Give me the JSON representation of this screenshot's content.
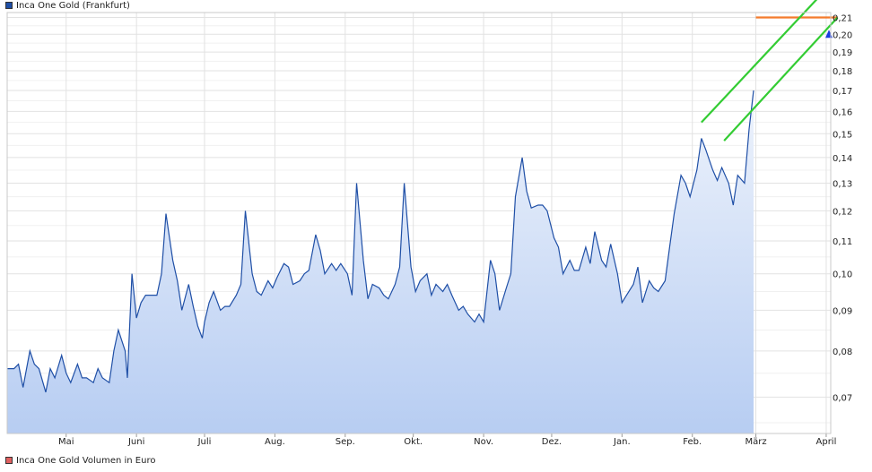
{
  "legend": {
    "price_series": "Inca One Gold (Frankfurt)",
    "volume_series": "Inca One Gold Volumen in Euro"
  },
  "colors": {
    "price_line": "#1f4fa6",
    "price_fill_top": "#eef3fc",
    "price_fill_bottom": "#b7cdf2",
    "volume_swatch": "#e06060",
    "trend_orange": "#f47b2c",
    "trend_green": "#33cc33",
    "last_marker": "#1a3de0",
    "grid": "#e2e2e2"
  },
  "chart_data": {
    "type": "area",
    "y_scale": "log",
    "ylim": [
      0.063,
      0.213
    ],
    "x_range": [
      "2024-04-05",
      "2025-04-03"
    ],
    "month_ticks": [
      {
        "label": "Mai",
        "date": "2024-05-01"
      },
      {
        "label": "Juni",
        "date": "2024-06-01"
      },
      {
        "label": "Juli",
        "date": "2024-07-01"
      },
      {
        "label": "Aug.",
        "date": "2024-08-01"
      },
      {
        "label": "Sep.",
        "date": "2024-09-01"
      },
      {
        "label": "Okt.",
        "date": "2024-10-01"
      },
      {
        "label": "Nov.",
        "date": "2024-11-01"
      },
      {
        "label": "Dez.",
        "date": "2024-12-01"
      },
      {
        "label": "Jan.",
        "date": "2025-01-01"
      },
      {
        "label": "Feb.",
        "date": "2025-02-01"
      },
      {
        "label": "März",
        "date": "2025-03-01"
      },
      {
        "label": "April",
        "date": "2025-04-01"
      }
    ],
    "y_ticks": [
      {
        "value": 0.07,
        "label": "0,07"
      },
      {
        "value": 0.08,
        "label": "0,08"
      },
      {
        "value": 0.09,
        "label": "0,09"
      },
      {
        "value": 0.1,
        "label": "0,10"
      },
      {
        "value": 0.11,
        "label": "0,11"
      },
      {
        "value": 0.12,
        "label": "0,12"
      },
      {
        "value": 0.13,
        "label": "0,13"
      },
      {
        "value": 0.14,
        "label": "0,14"
      },
      {
        "value": 0.15,
        "label": "0,15"
      },
      {
        "value": 0.16,
        "label": "0,16"
      },
      {
        "value": 0.17,
        "label": "0,17"
      },
      {
        "value": 0.18,
        "label": "0,18"
      },
      {
        "value": 0.19,
        "label": "0,19"
      },
      {
        "value": 0.2,
        "label": "0,20"
      },
      {
        "value": 0.21,
        "label": "0,21"
      }
    ],
    "series": [
      {
        "name": "Inca One Gold (Frankfurt)",
        "points": [
          [
            "2024-04-05",
            0.076
          ],
          [
            "2024-04-08",
            0.076
          ],
          [
            "2024-04-10",
            0.077
          ],
          [
            "2024-04-12",
            0.072
          ],
          [
            "2024-04-15",
            0.08
          ],
          [
            "2024-04-17",
            0.077
          ],
          [
            "2024-04-19",
            0.076
          ],
          [
            "2024-04-22",
            0.071
          ],
          [
            "2024-04-24",
            0.076
          ],
          [
            "2024-04-26",
            0.074
          ],
          [
            "2024-04-29",
            0.079
          ],
          [
            "2024-05-01",
            0.075
          ],
          [
            "2024-05-03",
            0.073
          ],
          [
            "2024-05-06",
            0.077
          ],
          [
            "2024-05-08",
            0.074
          ],
          [
            "2024-05-10",
            0.074
          ],
          [
            "2024-05-13",
            0.073
          ],
          [
            "2024-05-15",
            0.076
          ],
          [
            "2024-05-17",
            0.074
          ],
          [
            "2024-05-20",
            0.073
          ],
          [
            "2024-05-22",
            0.08
          ],
          [
            "2024-05-24",
            0.085
          ],
          [
            "2024-05-27",
            0.08
          ],
          [
            "2024-05-28",
            0.074
          ],
          [
            "2024-05-30",
            0.1
          ],
          [
            "2024-06-01",
            0.088
          ],
          [
            "2024-06-03",
            0.092
          ],
          [
            "2024-06-05",
            0.094
          ],
          [
            "2024-06-07",
            0.094
          ],
          [
            "2024-06-10",
            0.094
          ],
          [
            "2024-06-12",
            0.1
          ],
          [
            "2024-06-14",
            0.119
          ],
          [
            "2024-06-17",
            0.104
          ],
          [
            "2024-06-19",
            0.098
          ],
          [
            "2024-06-21",
            0.09
          ],
          [
            "2024-06-24",
            0.097
          ],
          [
            "2024-06-26",
            0.091
          ],
          [
            "2024-06-28",
            0.086
          ],
          [
            "2024-06-30",
            0.083
          ],
          [
            "2024-07-01",
            0.087
          ],
          [
            "2024-07-03",
            0.092
          ],
          [
            "2024-07-05",
            0.095
          ],
          [
            "2024-07-08",
            0.09
          ],
          [
            "2024-07-10",
            0.091
          ],
          [
            "2024-07-12",
            0.091
          ],
          [
            "2024-07-15",
            0.094
          ],
          [
            "2024-07-17",
            0.097
          ],
          [
            "2024-07-19",
            0.12
          ],
          [
            "2024-07-22",
            0.1
          ],
          [
            "2024-07-24",
            0.095
          ],
          [
            "2024-07-26",
            0.094
          ],
          [
            "2024-07-29",
            0.098
          ],
          [
            "2024-07-31",
            0.096
          ],
          [
            "2024-08-02",
            0.099
          ],
          [
            "2024-08-05",
            0.103
          ],
          [
            "2024-08-07",
            0.102
          ],
          [
            "2024-08-09",
            0.097
          ],
          [
            "2024-08-12",
            0.098
          ],
          [
            "2024-08-14",
            0.1
          ],
          [
            "2024-08-16",
            0.101
          ],
          [
            "2024-08-19",
            0.112
          ],
          [
            "2024-08-21",
            0.107
          ],
          [
            "2024-08-23",
            0.1
          ],
          [
            "2024-08-26",
            0.103
          ],
          [
            "2024-08-28",
            0.101
          ],
          [
            "2024-08-30",
            0.103
          ],
          [
            "2024-09-02",
            0.1
          ],
          [
            "2024-09-04",
            0.094
          ],
          [
            "2024-09-06",
            0.13
          ],
          [
            "2024-09-09",
            0.104
          ],
          [
            "2024-09-11",
            0.093
          ],
          [
            "2024-09-13",
            0.097
          ],
          [
            "2024-09-16",
            0.096
          ],
          [
            "2024-09-18",
            0.094
          ],
          [
            "2024-09-20",
            0.093
          ],
          [
            "2024-09-23",
            0.097
          ],
          [
            "2024-09-25",
            0.102
          ],
          [
            "2024-09-27",
            0.13
          ],
          [
            "2024-09-30",
            0.102
          ],
          [
            "2024-10-02",
            0.095
          ],
          [
            "2024-10-04",
            0.098
          ],
          [
            "2024-10-07",
            0.1
          ],
          [
            "2024-10-09",
            0.094
          ],
          [
            "2024-10-11",
            0.097
          ],
          [
            "2024-10-14",
            0.095
          ],
          [
            "2024-10-16",
            0.097
          ],
          [
            "2024-10-18",
            0.094
          ],
          [
            "2024-10-21",
            0.09
          ],
          [
            "2024-10-23",
            0.091
          ],
          [
            "2024-10-25",
            0.089
          ],
          [
            "2024-10-28",
            0.087
          ],
          [
            "2024-10-30",
            0.089
          ],
          [
            "2024-11-01",
            0.087
          ],
          [
            "2024-11-04",
            0.104
          ],
          [
            "2024-11-06",
            0.1
          ],
          [
            "2024-11-08",
            0.09
          ],
          [
            "2024-11-11",
            0.096
          ],
          [
            "2024-11-13",
            0.1
          ],
          [
            "2024-11-15",
            0.125
          ],
          [
            "2024-11-18",
            0.14
          ],
          [
            "2024-11-20",
            0.127
          ],
          [
            "2024-11-22",
            0.121
          ],
          [
            "2024-11-25",
            0.122
          ],
          [
            "2024-11-27",
            0.122
          ],
          [
            "2024-11-29",
            0.12
          ],
          [
            "2024-12-02",
            0.111
          ],
          [
            "2024-12-04",
            0.108
          ],
          [
            "2024-12-06",
            0.1
          ],
          [
            "2024-12-09",
            0.104
          ],
          [
            "2024-12-11",
            0.101
          ],
          [
            "2024-12-13",
            0.101
          ],
          [
            "2024-12-16",
            0.108
          ],
          [
            "2024-12-18",
            0.103
          ],
          [
            "2024-12-20",
            0.113
          ],
          [
            "2024-12-23",
            0.104
          ],
          [
            "2024-12-25",
            0.102
          ],
          [
            "2024-12-27",
            0.109
          ],
          [
            "2024-12-30",
            0.1
          ],
          [
            "2025-01-01",
            0.092
          ],
          [
            "2025-01-03",
            0.094
          ],
          [
            "2025-01-06",
            0.097
          ],
          [
            "2025-01-08",
            0.102
          ],
          [
            "2025-01-10",
            0.092
          ],
          [
            "2025-01-13",
            0.098
          ],
          [
            "2025-01-15",
            0.096
          ],
          [
            "2025-01-17",
            0.095
          ],
          [
            "2025-01-20",
            0.098
          ],
          [
            "2025-01-22",
            0.108
          ],
          [
            "2025-01-24",
            0.119
          ],
          [
            "2025-01-27",
            0.133
          ],
          [
            "2025-01-29",
            0.13
          ],
          [
            "2025-01-31",
            0.125
          ],
          [
            "2025-02-03",
            0.135
          ],
          [
            "2025-02-05",
            0.148
          ],
          [
            "2025-02-07",
            0.143
          ],
          [
            "2025-02-10",
            0.135
          ],
          [
            "2025-02-12",
            0.131
          ],
          [
            "2025-02-14",
            0.136
          ],
          [
            "2025-02-17",
            0.13
          ],
          [
            "2025-02-19",
            0.122
          ],
          [
            "2025-02-21",
            0.133
          ],
          [
            "2025-02-24",
            0.13
          ],
          [
            "2025-02-26",
            0.152
          ],
          [
            "2025-02-28",
            0.17
          ]
        ]
      }
    ],
    "last_value": 0.2,
    "trendlines": [
      {
        "color": "orange",
        "from": [
          "2025-03-01",
          0.21
        ],
        "to": [
          "2025-04-06",
          0.21
        ]
      },
      {
        "color": "green",
        "from": [
          "2025-02-05",
          0.155
        ],
        "to": [
          "2025-04-06",
          0.236
        ]
      },
      {
        "color": "green",
        "from": [
          "2025-02-15",
          0.147
        ],
        "to": [
          "2025-04-06",
          0.21
        ]
      }
    ]
  }
}
